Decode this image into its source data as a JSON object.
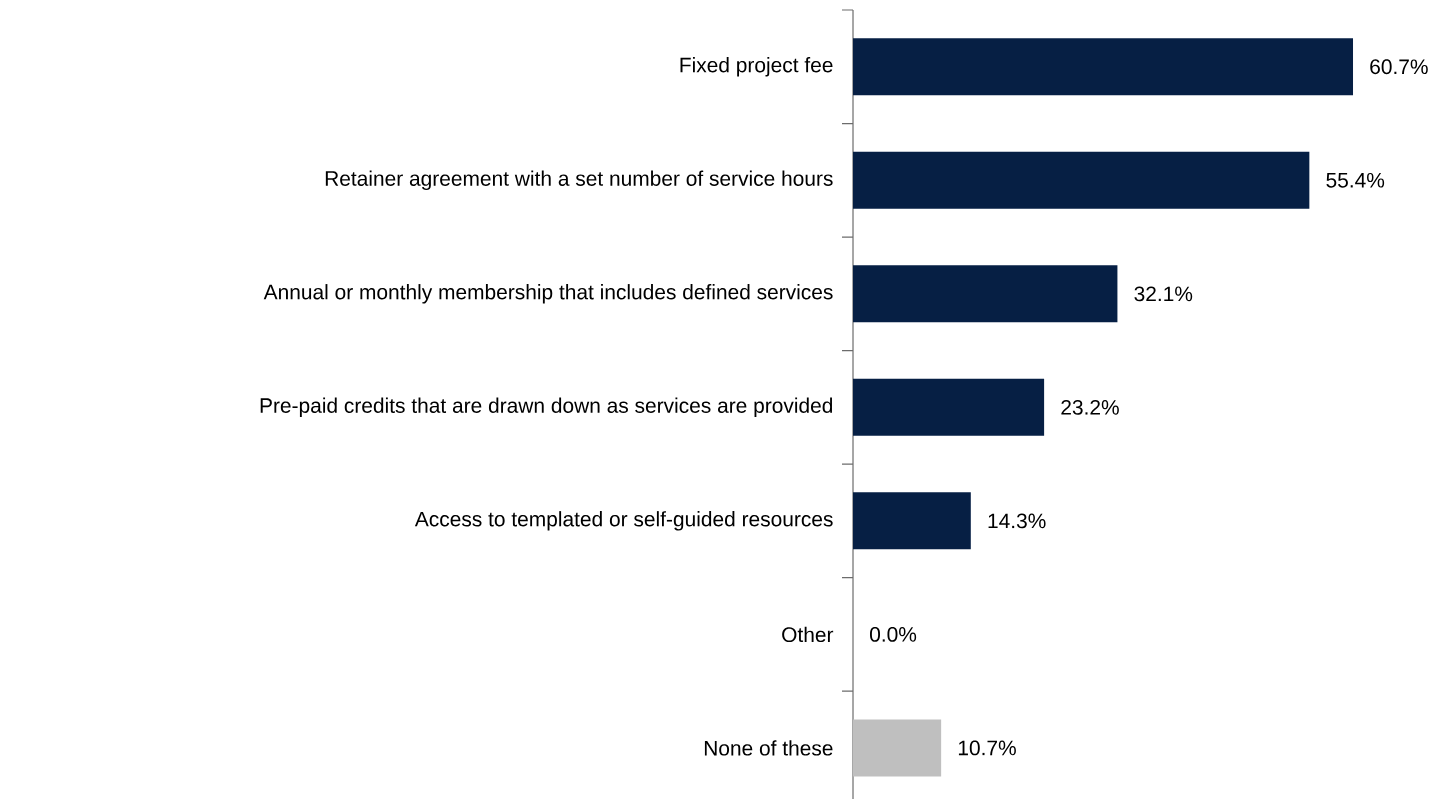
{
  "chart_data": {
    "type": "bar",
    "orientation": "horizontal",
    "categories": [
      "Fixed project fee",
      "Retainer agreement with a set number of service hours",
      "Annual or monthly membership that includes defined services",
      "Pre-paid credits that are drawn down as services are provided",
      "Access to templated or self-guided resources",
      "Other",
      "None of these"
    ],
    "values": [
      60.7,
      55.4,
      32.1,
      23.2,
      14.3,
      0.0,
      10.7
    ],
    "colors": [
      "#061f44",
      "#061f44",
      "#061f44",
      "#061f44",
      "#061f44",
      "#061f44",
      "#bfbfbf"
    ],
    "value_labels": [
      "60.7%",
      "55.4%",
      "32.1%",
      "23.2%",
      "14.3%",
      "0.0%",
      "10.7%"
    ],
    "tick_labels": "y"
  }
}
